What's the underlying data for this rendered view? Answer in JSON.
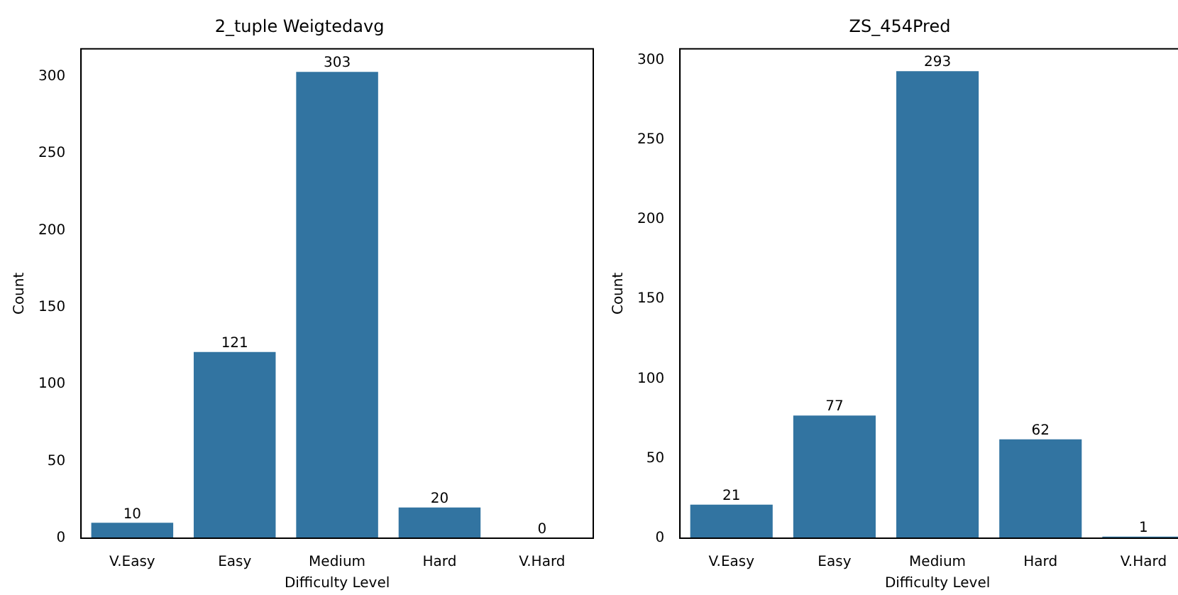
{
  "chart_data": [
    {
      "type": "bar",
      "title": "2_tuple Weigtedavg",
      "xlabel": "Difficulty Level",
      "ylabel": "Count",
      "categories": [
        "V.Easy",
        "Easy",
        "Medium",
        "Hard",
        "V.Hard"
      ],
      "series": [
        {
          "color": "#3274a1",
          "values": [
            10,
            121,
            303,
            20,
            0
          ]
        }
      ],
      "ylim": [
        0,
        318
      ],
      "yticks": [
        0,
        50,
        100,
        150,
        200,
        250,
        300
      ],
      "grid": false,
      "legend": false,
      "data_labels": true
    },
    {
      "type": "bar",
      "title": "ZS_454Pred",
      "xlabel": "Difficulty Level",
      "ylabel": "Count",
      "categories": [
        "V.Easy",
        "Easy",
        "Medium",
        "Hard",
        "V.Hard"
      ],
      "series": [
        {
          "color": "#3274a1",
          "values": [
            21,
            77,
            293,
            62,
            1
          ]
        }
      ],
      "ylim": [
        0,
        307
      ],
      "yticks": [
        0,
        50,
        100,
        150,
        200,
        250,
        300
      ],
      "grid": false,
      "legend": false,
      "data_labels": true
    }
  ]
}
